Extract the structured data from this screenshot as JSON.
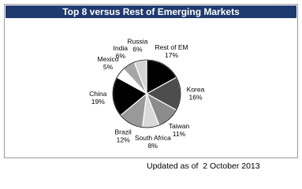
{
  "chart_data": {
    "type": "pie",
    "title": "Top 8 versus Rest of Emerging Markets",
    "categories": [
      "Rest of EM",
      "Korea",
      "Taiwan",
      "South Africa",
      "Brazil",
      "China",
      "Mexico",
      "India",
      "Russia"
    ],
    "values": [
      17,
      16,
      11,
      8,
      12,
      19,
      5,
      6,
      6
    ],
    "value_labels": [
      "17%",
      "16%",
      "11%",
      "8%",
      "12%",
      "19%",
      "5%",
      "6%",
      "6%"
    ],
    "colors": [
      "#000000",
      "#4d4d4d",
      "#8c8c8c",
      "#d9d9d9",
      "#999999",
      "#000000",
      "#ffffff",
      "#a6a6a6",
      "#d4d4d4"
    ]
  },
  "note": "Updated as of  2 October 2013"
}
